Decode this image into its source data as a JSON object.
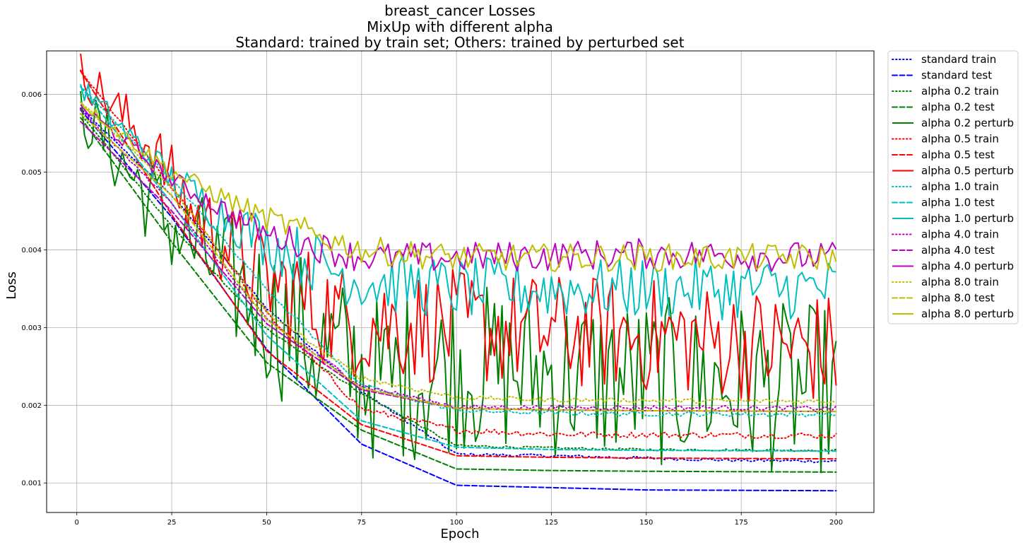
{
  "chart_data": {
    "type": "line",
    "title": [
      "breast_cancer Losses",
      "MixUp with different alpha",
      "Standard: trained by train set; Others: trained by perturbed set"
    ],
    "xlabel": "Epoch",
    "ylabel": "Loss",
    "xlim": [
      -7.95,
      209.95
    ],
    "ylim": [
      0.00062,
      0.00656
    ],
    "xticks": [
      0,
      25,
      50,
      75,
      100,
      125,
      150,
      175,
      200
    ],
    "yticks": [
      0.001,
      0.002,
      0.003,
      0.004,
      0.005,
      0.006
    ],
    "xtick_labels": [
      "0",
      "25",
      "50",
      "75",
      "100",
      "125",
      "150",
      "175",
      "200"
    ],
    "ytick_labels": [
      "0.001",
      "0.002",
      "0.003",
      "0.004",
      "0.005",
      "0.006"
    ],
    "grid": true,
    "legend_position": "outside-right",
    "x": [
      1,
      200
    ],
    "series": [
      {
        "name": "standard train",
        "style": "dotted",
        "color": "#0000ff",
        "keypoints": [
          [
            1,
            0.00582
          ],
          [
            25,
            0.0047
          ],
          [
            50,
            0.00325
          ],
          [
            75,
            0.00218
          ],
          [
            100,
            0.00137
          ],
          [
            125,
            0.00135
          ],
          [
            150,
            0.00132
          ],
          [
            175,
            0.00129
          ],
          [
            200,
            0.00128
          ]
        ],
        "noise": 2e-05
      },
      {
        "name": "standard test",
        "style": "dashed",
        "color": "#0000ff",
        "keypoints": [
          [
            1,
            0.0058
          ],
          [
            25,
            0.00442
          ],
          [
            50,
            0.00272
          ],
          [
            75,
            0.0015
          ],
          [
            100,
            0.00097
          ],
          [
            125,
            0.00094
          ],
          [
            150,
            0.00091
          ],
          [
            200,
            0.0009
          ]
        ],
        "noise": 0
      },
      {
        "name": "alpha 0.2 train",
        "style": "dotted",
        "color": "#008000",
        "keypoints": [
          [
            1,
            0.00575
          ],
          [
            25,
            0.0043
          ],
          [
            50,
            0.00298
          ],
          [
            75,
            0.00215
          ],
          [
            100,
            0.00148
          ],
          [
            125,
            0.00145
          ],
          [
            150,
            0.00143
          ],
          [
            200,
            0.00142
          ]
        ],
        "noise": 1.5e-05
      },
      {
        "name": "alpha 0.2 test",
        "style": "dashed",
        "color": "#008000",
        "keypoints": [
          [
            1,
            0.0057
          ],
          [
            25,
            0.0041
          ],
          [
            50,
            0.00255
          ],
          [
            75,
            0.00168
          ],
          [
            100,
            0.00118
          ],
          [
            125,
            0.00116
          ],
          [
            150,
            0.00115
          ],
          [
            200,
            0.00114
          ]
        ],
        "noise": 0
      },
      {
        "name": "alpha 0.2 perturb",
        "style": "solid",
        "color": "#008000",
        "keypoints": [
          [
            1,
            0.0058
          ],
          [
            25,
            0.0043
          ],
          [
            50,
            0.0032
          ],
          [
            65,
            0.0027
          ],
          [
            80,
            0.0023
          ],
          [
            100,
            0.0025
          ],
          [
            150,
            0.0023
          ],
          [
            200,
            0.0022
          ]
        ],
        "noise": 0.0011
      },
      {
        "name": "alpha 0.5 train",
        "style": "dotted",
        "color": "#ff0000",
        "keypoints": [
          [
            1,
            0.0063
          ],
          [
            25,
            0.0048
          ],
          [
            50,
            0.00318
          ],
          [
            75,
            0.00195
          ],
          [
            100,
            0.00168
          ],
          [
            125,
            0.00163
          ],
          [
            150,
            0.00162
          ],
          [
            200,
            0.00161
          ]
        ],
        "noise": 4e-05
      },
      {
        "name": "alpha 0.5 test",
        "style": "dashed",
        "color": "#ff0000",
        "keypoints": [
          [
            1,
            0.0063
          ],
          [
            25,
            0.00445
          ],
          [
            50,
            0.0027
          ],
          [
            75,
            0.00175
          ],
          [
            100,
            0.00135
          ],
          [
            125,
            0.00133
          ],
          [
            150,
            0.00132
          ],
          [
            200,
            0.00131
          ]
        ],
        "noise": 0
      },
      {
        "name": "alpha 0.5 perturb",
        "style": "solid",
        "color": "#ff0000",
        "keypoints": [
          [
            1,
            0.0063
          ],
          [
            20,
            0.0053
          ],
          [
            30,
            0.0045
          ],
          [
            50,
            0.0036
          ],
          [
            70,
            0.0031
          ],
          [
            100,
            0.003
          ],
          [
            150,
            0.0029
          ],
          [
            200,
            0.0027
          ]
        ],
        "noise": 0.00075
      },
      {
        "name": "alpha 1.0 train",
        "style": "dotted",
        "color": "#00bfbf",
        "keypoints": [
          [
            1,
            0.0061
          ],
          [
            25,
            0.0049
          ],
          [
            50,
            0.0035
          ],
          [
            75,
            0.00225
          ],
          [
            100,
            0.00193
          ],
          [
            125,
            0.0019
          ],
          [
            150,
            0.00189
          ],
          [
            200,
            0.00188
          ]
        ],
        "noise": 3e-05
      },
      {
        "name": "alpha 1.0 test",
        "style": "dashed",
        "color": "#00bfbf",
        "keypoints": [
          [
            1,
            0.0061
          ],
          [
            25,
            0.0046
          ],
          [
            50,
            0.0029
          ],
          [
            75,
            0.0018
          ],
          [
            100,
            0.00146
          ],
          [
            125,
            0.00143
          ],
          [
            150,
            0.00142
          ],
          [
            200,
            0.00141
          ]
        ],
        "noise": 0
      },
      {
        "name": "alpha 1.0 perturb",
        "style": "solid",
        "color": "#00bfbf",
        "keypoints": [
          [
            1,
            0.0061
          ],
          [
            25,
            0.0049
          ],
          [
            50,
            0.0041
          ],
          [
            75,
            0.0036
          ],
          [
            100,
            0.0035
          ],
          [
            150,
            0.0035
          ],
          [
            200,
            0.0035
          ]
        ],
        "noise": 0.0004
      },
      {
        "name": "alpha 4.0 train",
        "style": "dotted",
        "color": "#bf00bf",
        "keypoints": [
          [
            1,
            0.0058
          ],
          [
            25,
            0.0046
          ],
          [
            50,
            0.0031
          ],
          [
            75,
            0.00225
          ],
          [
            100,
            0.00198
          ],
          [
            125,
            0.00197
          ],
          [
            150,
            0.00197
          ],
          [
            200,
            0.00196
          ]
        ],
        "noise": 3e-05
      },
      {
        "name": "alpha 4.0 test",
        "style": "dashed",
        "color": "#bf00bf",
        "keypoints": [
          [
            1,
            0.00565
          ],
          [
            25,
            0.0045
          ],
          [
            50,
            0.00305
          ],
          [
            75,
            0.0022
          ],
          [
            100,
            0.00196
          ],
          [
            125,
            0.00194
          ],
          [
            150,
            0.00193
          ],
          [
            200,
            0.00192
          ]
        ],
        "noise": 0
      },
      {
        "name": "alpha 4.0 perturb",
        "style": "solid",
        "color": "#bf00bf",
        "keypoints": [
          [
            1,
            0.00585
          ],
          [
            25,
            0.0049
          ],
          [
            50,
            0.0042
          ],
          [
            75,
            0.0039
          ],
          [
            100,
            0.0039
          ],
          [
            150,
            0.00395
          ],
          [
            200,
            0.0039
          ]
        ],
        "noise": 0.0002
      },
      {
        "name": "alpha 8.0 train",
        "style": "dotted",
        "color": "#bfbf00",
        "keypoints": [
          [
            1,
            0.0059
          ],
          [
            25,
            0.0048
          ],
          [
            50,
            0.0032
          ],
          [
            75,
            0.00235
          ],
          [
            100,
            0.0021
          ],
          [
            125,
            0.00207
          ],
          [
            150,
            0.00206
          ],
          [
            200,
            0.00205
          ]
        ],
        "noise": 3e-05
      },
      {
        "name": "alpha 8.0 test",
        "style": "dashed",
        "color": "#bfbf00",
        "keypoints": [
          [
            1,
            0.00575
          ],
          [
            25,
            0.0047
          ],
          [
            50,
            0.0031
          ],
          [
            75,
            0.00222
          ],
          [
            100,
            0.00196
          ],
          [
            125,
            0.00194
          ],
          [
            150,
            0.00193
          ],
          [
            200,
            0.00192
          ]
        ],
        "noise": 0
      },
      {
        "name": "alpha 8.0 perturb",
        "style": "solid",
        "color": "#bfbf00",
        "keypoints": [
          [
            1,
            0.0059
          ],
          [
            25,
            0.005
          ],
          [
            50,
            0.0044
          ],
          [
            75,
            0.004
          ],
          [
            100,
            0.0039
          ],
          [
            150,
            0.0039
          ],
          [
            200,
            0.0039
          ]
        ],
        "noise": 0.00018
      }
    ]
  }
}
